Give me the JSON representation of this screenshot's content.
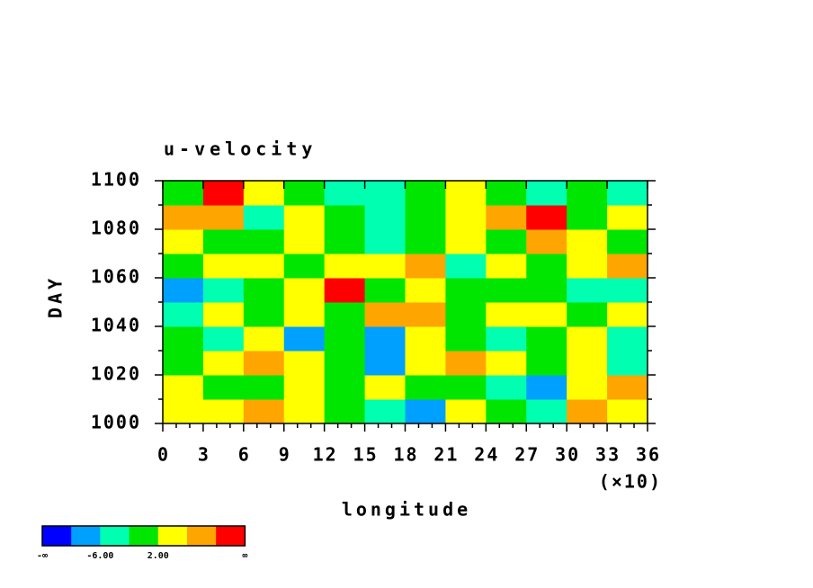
{
  "chart_data": {
    "type": "shaded-contour",
    "title": "u-velocity",
    "xlabel": "longitude",
    "ylabel": "DAY",
    "xmultiplier": "(×10)",
    "xlim": [
      0,
      36
    ],
    "xticks": [
      0,
      3,
      6,
      9,
      12,
      15,
      18,
      21,
      24,
      27,
      30,
      33,
      36
    ],
    "xminorticks": [
      1,
      2,
      4,
      5,
      7,
      8,
      10,
      11,
      13,
      14,
      16,
      17,
      19,
      20,
      22,
      23,
      25,
      26,
      28,
      29,
      31,
      32,
      34,
      35
    ],
    "ylim": [
      1000,
      1100
    ],
    "yticks": [
      1000,
      1020,
      1040,
      1060,
      1080,
      1100
    ],
    "yminorticks": [
      1010,
      1030,
      1050,
      1070,
      1090
    ],
    "x": [
      1.5,
      4.5,
      7.5,
      10.5,
      13.5,
      16.5,
      19.5,
      22.5,
      25.5,
      28.5,
      31.5,
      34.5
    ],
    "y": [
      1005,
      1015,
      1025,
      1035,
      1045,
      1055,
      1065,
      1075,
      1085,
      1095
    ],
    "z": [
      [
        2,
        4,
        7,
        4,
        0,
        -4,
        -8,
        3,
        1,
        -3,
        8,
        3
      ],
      [
        3,
        -1,
        1,
        5,
        0,
        4,
        -2,
        1,
        -3,
        -9,
        2,
        6
      ],
      [
        -1,
        5,
        8,
        3,
        -2,
        -7,
        4,
        8,
        5,
        1,
        3,
        -3
      ],
      [
        1,
        -4,
        4,
        -8,
        0,
        -7,
        2,
        -2,
        -3,
        1,
        4,
        -5
      ],
      [
        -6,
        2,
        -1,
        3,
        1,
        7,
        9,
        -1,
        3,
        5,
        -2,
        3
      ],
      [
        -7,
        -3,
        0,
        4,
        11,
        -1,
        3,
        -2,
        1,
        0,
        -3,
        -6
      ],
      [
        0,
        3,
        5,
        1,
        4,
        2,
        8,
        -3,
        5,
        -1,
        4,
        8
      ],
      [
        3,
        -2,
        -1,
        2,
        0,
        -4,
        1,
        3,
        -2,
        7,
        3,
        1
      ],
      [
        9,
        7,
        -3,
        3,
        1,
        -5,
        -1,
        4,
        8,
        11,
        0,
        5
      ],
      [
        1,
        10,
        4,
        -1,
        -5,
        -3,
        1,
        2,
        0,
        -3,
        1,
        -4
      ]
    ],
    "colorbar": {
      "colors": [
        "#0000ff",
        "#00a0ff",
        "#00ffb0",
        "#00e600",
        "#ffff00",
        "#ffa500",
        "#ff0000"
      ],
      "boundaries": [
        null,
        -10,
        -6,
        -2,
        2,
        6,
        10,
        null
      ],
      "labels": [
        "-∞",
        null,
        "-6.00",
        null,
        "2.00",
        null,
        null,
        "∞"
      ]
    }
  }
}
